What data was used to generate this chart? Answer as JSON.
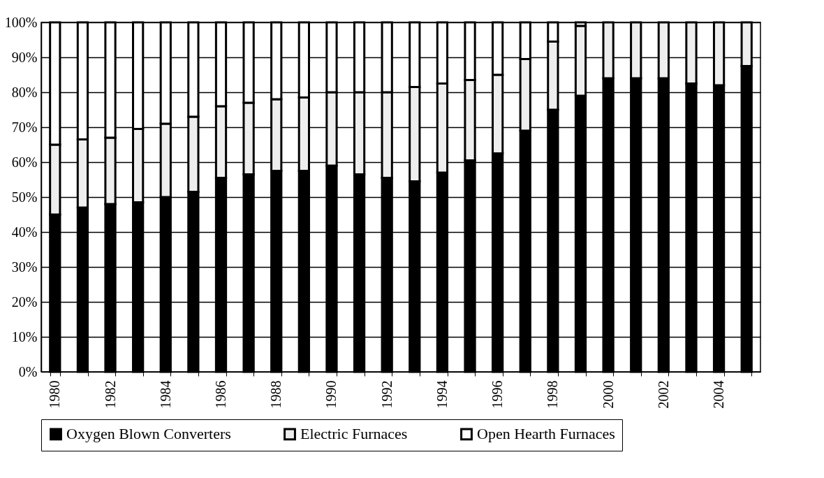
{
  "chart_data": {
    "type": "bar",
    "stacked": true,
    "categories": [
      "1980",
      null,
      "1982",
      null,
      "1984",
      null,
      "1986",
      null,
      "1988",
      null,
      "1990",
      null,
      "1992",
      null,
      "1994",
      null,
      "1996",
      null,
      "1998",
      null,
      "2000",
      null,
      "2002",
      null,
      "2004",
      null
    ],
    "series": [
      {
        "name": "Oxygen Blown Converters",
        "color": "#000000",
        "values": [
          45,
          47,
          48,
          48.5,
          50,
          51.5,
          55.5,
          56.5,
          57.5,
          57.5,
          59,
          56.5,
          55.5,
          54.5,
          57,
          60.5,
          62.5,
          69,
          75,
          79,
          84,
          84,
          84,
          82.5,
          82,
          87.5
        ]
      },
      {
        "name": "Electric Furnaces",
        "color": "#eeeeee",
        "values": [
          20,
          19.5,
          19,
          21,
          21,
          21.5,
          20.5,
          20.5,
          20.5,
          21,
          21,
          23.5,
          24.5,
          27,
          25.5,
          23,
          22.5,
          20.5,
          19.5,
          20,
          16,
          16,
          16,
          17.5,
          18,
          12.5
        ]
      },
      {
        "name": "Open Hearth Furnaces",
        "color": "#ffffff",
        "values": [
          35,
          33.5,
          33,
          30.5,
          29,
          27,
          24,
          23,
          22,
          21.5,
          20,
          20,
          20,
          18.5,
          17.5,
          16.5,
          15,
          10.5,
          5.5,
          1,
          null,
          null,
          null,
          null,
          null,
          null
        ]
      }
    ],
    "ylim": [
      0,
      100
    ],
    "yticks": [
      {
        "value": 0,
        "label": "0%"
      },
      {
        "value": 10,
        "label": "10%"
      },
      {
        "value": 20,
        "label": "20%"
      },
      {
        "value": 30,
        "label": "30%"
      },
      {
        "value": 40,
        "label": "40%"
      },
      {
        "value": 50,
        "label": "50%"
      },
      {
        "value": 60,
        "label": "60%"
      },
      {
        "value": 70,
        "label": "70%"
      },
      {
        "value": 80,
        "label": "80%"
      },
      {
        "value": 90,
        "label": "90%"
      },
      {
        "value": 100,
        "label": "100%"
      }
    ],
    "grid": "y",
    "legend": "bottom"
  }
}
